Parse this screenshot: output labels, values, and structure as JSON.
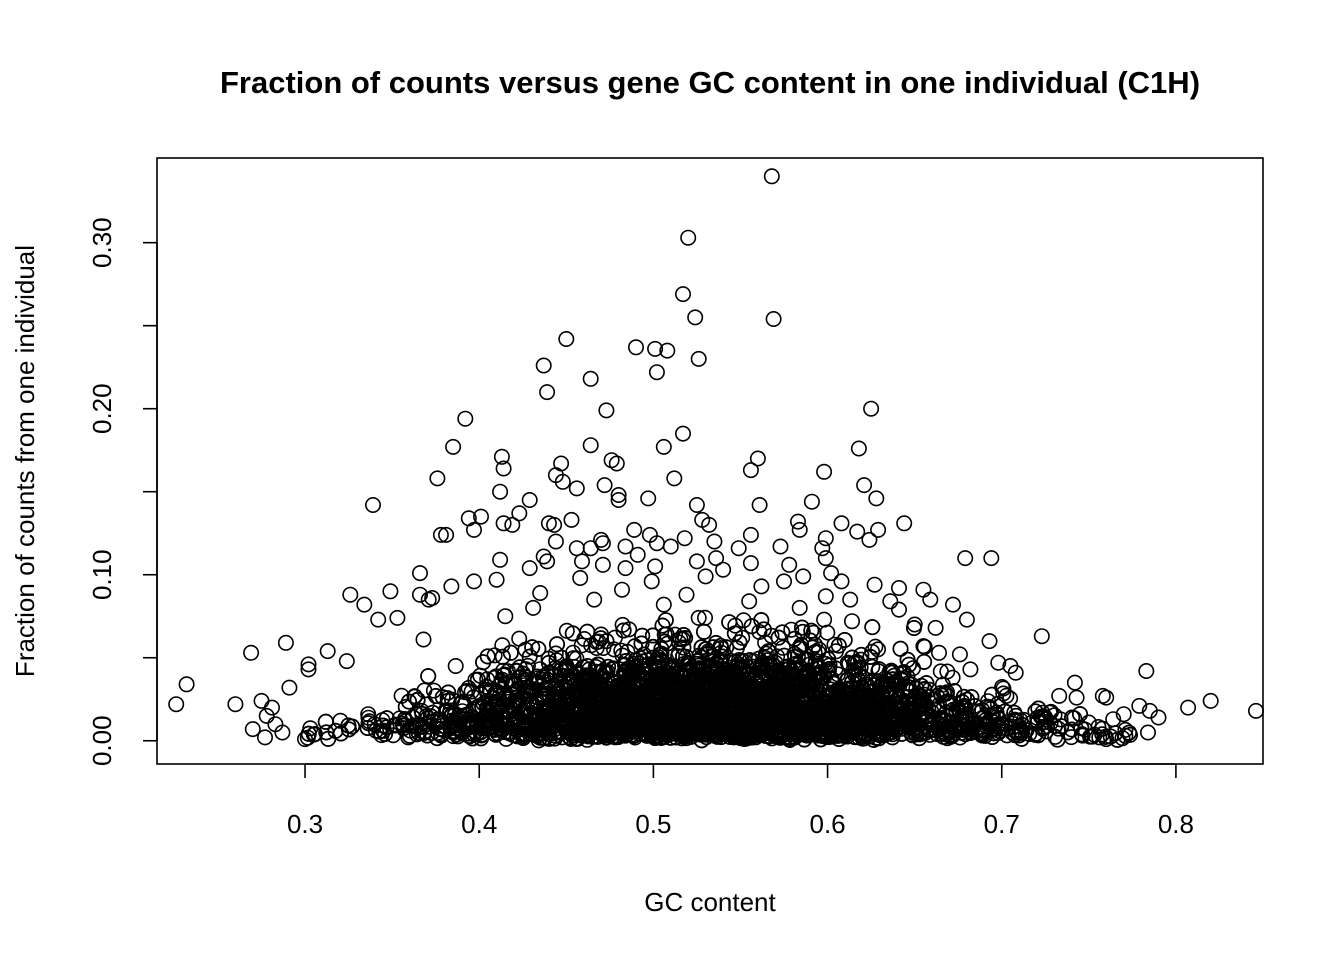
{
  "chart_data": {
    "type": "scatter",
    "title": "Fraction of counts versus gene GC content in one individual (C1H)",
    "xlabel": "GC content",
    "ylabel": "Fraction of counts from one individual",
    "xlim": [
      0.215,
      0.85
    ],
    "ylim": [
      -0.014,
      0.351
    ],
    "x_ticks": [
      0.3,
      0.4,
      0.5,
      0.6,
      0.7,
      0.8
    ],
    "x_tick_labels": [
      "0.3",
      "0.4",
      "0.5",
      "0.6",
      "0.7",
      "0.8"
    ],
    "y_ticks": [
      0.0,
      0.05,
      0.1,
      0.15,
      0.2,
      0.25,
      0.3
    ],
    "y_tick_labels": [
      "0.00",
      "",
      "0.10",
      "",
      "0.20",
      "",
      "0.30"
    ],
    "marker": "open-circle",
    "grid": false,
    "legend": "none",
    "dense_cloud_note": "Several thousand genes between GC 0.30 and 0.76 with fractions mostly below 0.06",
    "points": [
      [
        0.568,
        0.34
      ],
      [
        0.52,
        0.303
      ],
      [
        0.517,
        0.269
      ],
      [
        0.524,
        0.255
      ],
      [
        0.569,
        0.254
      ],
      [
        0.45,
        0.242
      ],
      [
        0.49,
        0.237
      ],
      [
        0.501,
        0.236
      ],
      [
        0.508,
        0.235
      ],
      [
        0.526,
        0.23
      ],
      [
        0.437,
        0.226
      ],
      [
        0.502,
        0.222
      ],
      [
        0.464,
        0.218
      ],
      [
        0.439,
        0.21
      ],
      [
        0.625,
        0.2
      ],
      [
        0.473,
        0.199
      ],
      [
        0.392,
        0.194
      ],
      [
        0.517,
        0.185
      ],
      [
        0.464,
        0.178
      ],
      [
        0.506,
        0.177
      ],
      [
        0.385,
        0.177
      ],
      [
        0.618,
        0.176
      ],
      [
        0.413,
        0.171
      ],
      [
        0.476,
        0.169
      ],
      [
        0.56,
        0.17
      ],
      [
        0.479,
        0.167
      ],
      [
        0.447,
        0.167
      ],
      [
        0.414,
        0.164
      ],
      [
        0.556,
        0.163
      ],
      [
        0.598,
        0.162
      ],
      [
        0.444,
        0.16
      ],
      [
        0.512,
        0.158
      ],
      [
        0.376,
        0.158
      ],
      [
        0.448,
        0.156
      ],
      [
        0.621,
        0.154
      ],
      [
        0.472,
        0.154
      ],
      [
        0.456,
        0.152
      ],
      [
        0.412,
        0.15
      ],
      [
        0.48,
        0.148
      ],
      [
        0.497,
        0.146
      ],
      [
        0.628,
        0.146
      ],
      [
        0.429,
        0.145
      ],
      [
        0.48,
        0.145
      ],
      [
        0.591,
        0.144
      ],
      [
        0.561,
        0.142
      ],
      [
        0.339,
        0.142
      ],
      [
        0.525,
        0.142
      ],
      [
        0.394,
        0.134
      ],
      [
        0.401,
        0.135
      ],
      [
        0.423,
        0.137
      ],
      [
        0.453,
        0.133
      ],
      [
        0.528,
        0.133
      ],
      [
        0.44,
        0.131
      ],
      [
        0.443,
        0.13
      ],
      [
        0.583,
        0.132
      ],
      [
        0.414,
        0.131
      ],
      [
        0.608,
        0.131
      ],
      [
        0.644,
        0.131
      ],
      [
        0.532,
        0.13
      ],
      [
        0.419,
        0.13
      ],
      [
        0.397,
        0.127
      ],
      [
        0.629,
        0.127
      ],
      [
        0.584,
        0.127
      ],
      [
        0.489,
        0.127
      ],
      [
        0.617,
        0.126
      ],
      [
        0.381,
        0.124
      ],
      [
        0.378,
        0.124
      ],
      [
        0.498,
        0.124
      ],
      [
        0.556,
        0.124
      ],
      [
        0.47,
        0.121
      ],
      [
        0.599,
        0.122
      ],
      [
        0.624,
        0.121
      ],
      [
        0.518,
        0.122
      ],
      [
        0.444,
        0.12
      ],
      [
        0.471,
        0.119
      ],
      [
        0.502,
        0.119
      ],
      [
        0.597,
        0.116
      ],
      [
        0.535,
        0.12
      ],
      [
        0.573,
        0.117
      ],
      [
        0.51,
        0.117
      ],
      [
        0.484,
        0.117
      ],
      [
        0.464,
        0.116
      ],
      [
        0.549,
        0.116
      ],
      [
        0.456,
        0.116
      ],
      [
        0.437,
        0.111
      ],
      [
        0.491,
        0.112
      ],
      [
        0.599,
        0.11
      ],
      [
        0.679,
        0.11
      ],
      [
        0.694,
        0.11
      ],
      [
        0.536,
        0.11
      ],
      [
        0.412,
        0.109
      ],
      [
        0.439,
        0.108
      ],
      [
        0.459,
        0.108
      ],
      [
        0.525,
        0.108
      ],
      [
        0.556,
        0.107
      ],
      [
        0.471,
        0.106
      ],
      [
        0.578,
        0.106
      ],
      [
        0.501,
        0.105
      ],
      [
        0.484,
        0.104
      ],
      [
        0.429,
        0.104
      ],
      [
        0.54,
        0.103
      ],
      [
        0.366,
        0.101
      ],
      [
        0.602,
        0.101
      ],
      [
        0.586,
        0.099
      ],
      [
        0.53,
        0.099
      ],
      [
        0.458,
        0.098
      ],
      [
        0.41,
        0.097
      ],
      [
        0.397,
        0.096
      ],
      [
        0.499,
        0.096
      ],
      [
        0.575,
        0.096
      ],
      [
        0.608,
        0.096
      ],
      [
        0.627,
        0.094
      ],
      [
        0.562,
        0.093
      ],
      [
        0.384,
        0.093
      ],
      [
        0.641,
        0.092
      ],
      [
        0.655,
        0.091
      ],
      [
        0.482,
        0.091
      ],
      [
        0.349,
        0.09
      ],
      [
        0.435,
        0.089
      ],
      [
        0.326,
        0.088
      ],
      [
        0.519,
        0.088
      ],
      [
        0.599,
        0.087
      ],
      [
        0.366,
        0.088
      ],
      [
        0.371,
        0.085
      ],
      [
        0.373,
        0.086
      ],
      [
        0.659,
        0.085
      ],
      [
        0.636,
        0.084
      ],
      [
        0.613,
        0.085
      ],
      [
        0.555,
        0.084
      ],
      [
        0.466,
        0.085
      ],
      [
        0.334,
        0.082
      ],
      [
        0.506,
        0.082
      ],
      [
        0.672,
        0.082
      ],
      [
        0.431,
        0.08
      ],
      [
        0.584,
        0.08
      ],
      [
        0.641,
        0.079
      ],
      [
        0.68,
        0.073
      ],
      [
        0.353,
        0.074
      ],
      [
        0.342,
        0.073
      ],
      [
        0.598,
        0.073
      ],
      [
        0.526,
        0.074
      ],
      [
        0.415,
        0.075
      ],
      [
        0.65,
        0.07
      ],
      [
        0.662,
        0.068
      ],
      [
        0.614,
        0.072
      ],
      [
        0.723,
        0.063
      ],
      [
        0.693,
        0.06
      ],
      [
        0.289,
        0.059
      ],
      [
        0.551,
        0.062
      ],
      [
        0.368,
        0.061
      ],
      [
        0.47,
        0.064
      ],
      [
        0.592,
        0.065
      ],
      [
        0.269,
        0.053
      ],
      [
        0.313,
        0.054
      ],
      [
        0.655,
        0.057
      ],
      [
        0.664,
        0.053
      ],
      [
        0.676,
        0.052
      ],
      [
        0.324,
        0.048
      ],
      [
        0.302,
        0.046
      ],
      [
        0.698,
        0.047
      ],
      [
        0.705,
        0.045
      ],
      [
        0.783,
        0.042
      ],
      [
        0.302,
        0.043
      ],
      [
        0.682,
        0.043
      ],
      [
        0.708,
        0.041
      ],
      [
        0.232,
        0.034
      ],
      [
        0.742,
        0.035
      ],
      [
        0.291,
        0.032
      ],
      [
        0.733,
        0.027
      ],
      [
        0.758,
        0.027
      ],
      [
        0.76,
        0.026
      ],
      [
        0.743,
        0.026
      ],
      [
        0.226,
        0.022
      ],
      [
        0.26,
        0.022
      ],
      [
        0.275,
        0.024
      ],
      [
        0.82,
        0.024
      ],
      [
        0.807,
        0.02
      ],
      [
        0.779,
        0.021
      ],
      [
        0.846,
        0.018
      ],
      [
        0.785,
        0.018
      ],
      [
        0.79,
        0.014
      ],
      [
        0.77,
        0.016
      ],
      [
        0.764,
        0.013
      ],
      [
        0.75,
        0.011
      ],
      [
        0.784,
        0.005
      ],
      [
        0.771,
        0.003
      ],
      [
        0.756,
        0.002
      ],
      [
        0.76,
        0.001
      ],
      [
        0.3,
        0.001
      ],
      [
        0.277,
        0.002
      ],
      [
        0.27,
        0.007
      ],
      [
        0.283,
        0.01
      ],
      [
        0.287,
        0.005
      ],
      [
        0.278,
        0.015
      ],
      [
        0.281,
        0.02
      ]
    ]
  }
}
